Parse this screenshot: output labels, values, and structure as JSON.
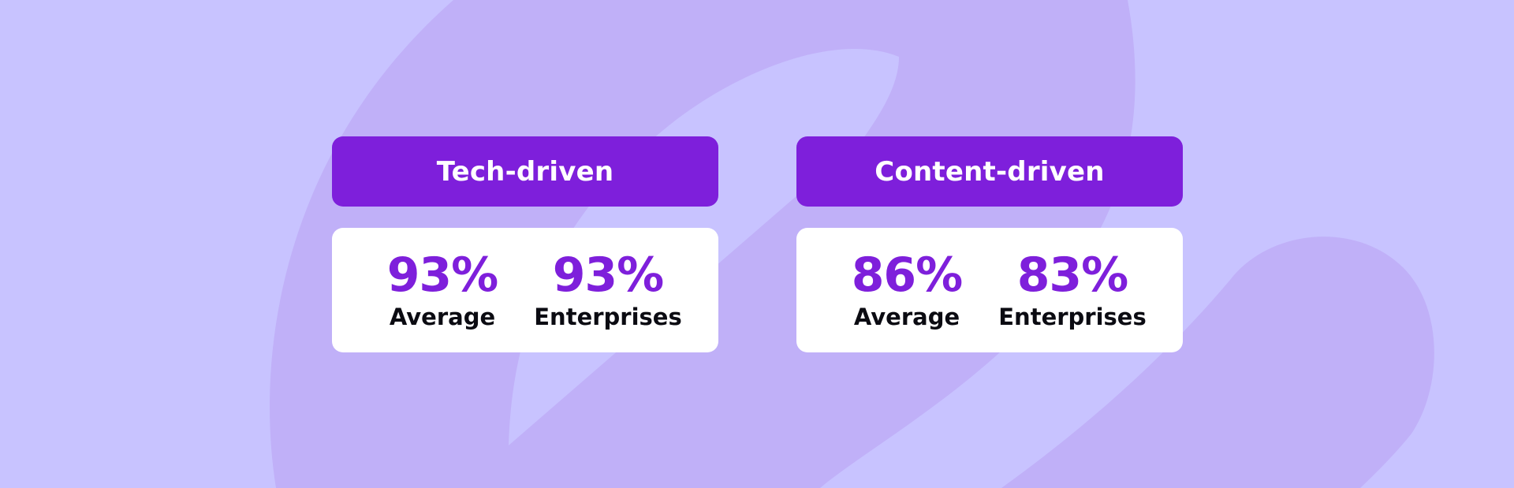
{
  "colors": {
    "background": "#c8c3ff",
    "background_shape": "#c0b0f8",
    "accent": "#7e1fdb",
    "card": "#ffffff",
    "label_text": "#0b0b12"
  },
  "panels": [
    {
      "title": "Tech-driven",
      "stats": [
        {
          "value": "93%",
          "label": "Average"
        },
        {
          "value": "93%",
          "label": "Enterprises"
        }
      ]
    },
    {
      "title": "Content-driven",
      "stats": [
        {
          "value": "86%",
          "label": "Average"
        },
        {
          "value": "83%",
          "label": "Enterprises"
        }
      ]
    }
  ]
}
